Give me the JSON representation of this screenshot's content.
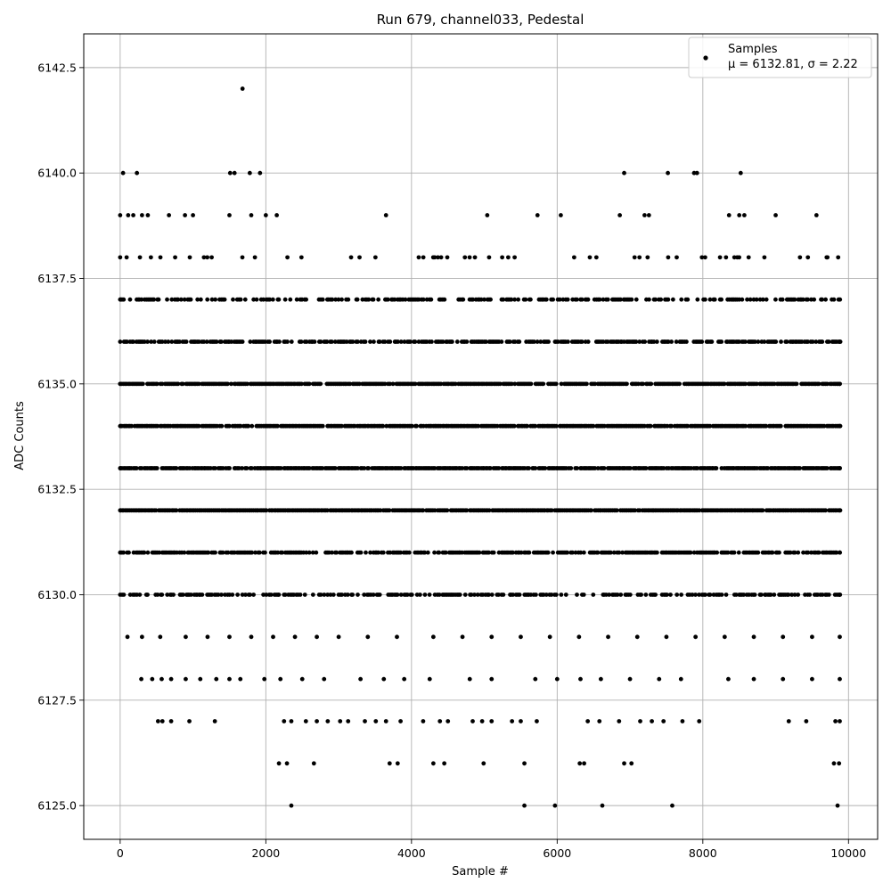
{
  "chart_data": {
    "type": "scatter",
    "title": "Run 679, channel033, Pedestal",
    "xlabel": "Sample #",
    "ylabel": "ADC Counts",
    "xlim": [
      -500,
      10400
    ],
    "ylim": [
      6124.2,
      6143.3
    ],
    "xticks": [
      0,
      2000,
      4000,
      6000,
      8000,
      10000
    ],
    "yticks": [
      6125.0,
      6127.5,
      6130.0,
      6132.5,
      6135.0,
      6137.5,
      6140.0,
      6142.5
    ],
    "grid": true,
    "legend": {
      "placement": "top-right",
      "entries": [
        {
          "label": "Samples",
          "sublabel": "μ = 6132.81, σ = 2.22",
          "color": "#000000",
          "marker": "circle"
        }
      ]
    },
    "n_samples": 9880,
    "mean": 6132.81,
    "sigma": 2.22,
    "series": [
      {
        "name": "Samples",
        "color": "#000000",
        "points": [
          [
            0,
            6139
          ],
          [
            40,
            6140
          ],
          [
            110,
            6139
          ],
          [
            230,
            6140
          ],
          [
            180,
            6139
          ],
          [
            300,
            6139
          ],
          [
            380,
            6139
          ],
          [
            670,
            6139
          ],
          [
            890,
            6139
          ],
          [
            1000,
            6139
          ],
          [
            1500,
            6139
          ],
          [
            1800,
            6139
          ],
          [
            2000,
            6139
          ],
          [
            2150,
            6139
          ],
          [
            3650,
            6139
          ],
          [
            5040,
            6139
          ],
          [
            5730,
            6139
          ],
          [
            6050,
            6139
          ],
          [
            6860,
            6139
          ],
          [
            7200,
            6139
          ],
          [
            7260,
            6139
          ],
          [
            8360,
            6139
          ],
          [
            8500,
            6139
          ],
          [
            8570,
            6139
          ],
          [
            9000,
            6139
          ],
          [
            9560,
            6139
          ],
          [
            1510,
            6140
          ],
          [
            1570,
            6140
          ],
          [
            1780,
            6140
          ],
          [
            1920,
            6140
          ],
          [
            6920,
            6140
          ],
          [
            7520,
            6140
          ],
          [
            7880,
            6140
          ],
          [
            7920,
            6140
          ],
          [
            8520,
            6140
          ],
          [
            1680,
            6142
          ],
          [
            2350,
            6125
          ],
          [
            5550,
            6125
          ],
          [
            5970,
            6125
          ],
          [
            6620,
            6125
          ],
          [
            7580,
            6125
          ],
          [
            9850,
            6125
          ],
          [
            2180,
            6126
          ],
          [
            2290,
            6126
          ],
          [
            2660,
            6126
          ],
          [
            3700,
            6126
          ],
          [
            3810,
            6126
          ],
          [
            4300,
            6126
          ],
          [
            4450,
            6126
          ],
          [
            4990,
            6126
          ],
          [
            5550,
            6126
          ],
          [
            6310,
            6126
          ],
          [
            6370,
            6126
          ],
          [
            6920,
            6126
          ],
          [
            7020,
            6126
          ],
          [
            9800,
            6126
          ],
          [
            9870,
            6126
          ],
          [
            520,
            6127
          ],
          [
            580,
            6127
          ],
          [
            700,
            6127
          ],
          [
            950,
            6127
          ],
          [
            1300,
            6127
          ],
          [
            2250,
            6127
          ],
          [
            2350,
            6127
          ],
          [
            2550,
            6127
          ],
          [
            2700,
            6127
          ],
          [
            2850,
            6127
          ],
          [
            3020,
            6127
          ],
          [
            3130,
            6127
          ],
          [
            3360,
            6127
          ],
          [
            3510,
            6127
          ],
          [
            3650,
            6127
          ],
          [
            3850,
            6127
          ],
          [
            4160,
            6127
          ],
          [
            4390,
            6127
          ],
          [
            4500,
            6127
          ],
          [
            4840,
            6127
          ],
          [
            4970,
            6127
          ],
          [
            5100,
            6127
          ],
          [
            5380,
            6127
          ],
          [
            5500,
            6127
          ],
          [
            5720,
            6127
          ],
          [
            6420,
            6127
          ],
          [
            6580,
            6127
          ],
          [
            6850,
            6127
          ],
          [
            7140,
            6127
          ],
          [
            7300,
            6127
          ],
          [
            7460,
            6127
          ],
          [
            7720,
            6127
          ],
          [
            7950,
            6127
          ],
          [
            9180,
            6127
          ],
          [
            9420,
            6127
          ],
          [
            9820,
            6127
          ],
          [
            9880,
            6127
          ],
          [
            290,
            6128
          ],
          [
            440,
            6128
          ],
          [
            570,
            6128
          ],
          [
            700,
            6128
          ],
          [
            900,
            6128
          ],
          [
            1100,
            6128
          ],
          [
            1320,
            6128
          ],
          [
            1500,
            6128
          ],
          [
            1650,
            6128
          ],
          [
            1980,
            6128
          ],
          [
            2200,
            6128
          ],
          [
            2500,
            6128
          ],
          [
            2800,
            6128
          ],
          [
            3300,
            6128
          ],
          [
            3620,
            6128
          ],
          [
            3900,
            6128
          ],
          [
            4250,
            6128
          ],
          [
            4800,
            6128
          ],
          [
            5100,
            6128
          ],
          [
            5700,
            6128
          ],
          [
            6000,
            6128
          ],
          [
            6320,
            6128
          ],
          [
            6600,
            6128
          ],
          [
            7000,
            6128
          ],
          [
            7400,
            6128
          ],
          [
            7700,
            6128
          ],
          [
            8350,
            6128
          ],
          [
            8700,
            6128
          ],
          [
            9100,
            6128
          ],
          [
            9500,
            6128
          ],
          [
            9880,
            6128
          ],
          [
            100,
            6129
          ],
          [
            300,
            6129
          ],
          [
            550,
            6129
          ],
          [
            900,
            6129
          ],
          [
            1200,
            6129
          ],
          [
            1500,
            6129
          ],
          [
            1800,
            6129
          ],
          [
            2100,
            6129
          ],
          [
            2400,
            6129
          ],
          [
            2700,
            6129
          ],
          [
            3000,
            6129
          ],
          [
            3400,
            6129
          ],
          [
            3800,
            6129
          ],
          [
            4300,
            6129
          ],
          [
            4700,
            6129
          ],
          [
            5100,
            6129
          ],
          [
            5500,
            6129
          ],
          [
            5900,
            6129
          ],
          [
            6300,
            6129
          ],
          [
            6700,
            6129
          ],
          [
            7100,
            6129
          ],
          [
            7500,
            6129
          ],
          [
            7900,
            6129
          ],
          [
            8300,
            6129
          ],
          [
            8700,
            6129
          ],
          [
            9100,
            6129
          ],
          [
            9500,
            6129
          ],
          [
            9880,
            6129
          ],
          [
            0,
            6130
          ],
          [
            9880,
            6130
          ],
          [
            0,
            6131
          ],
          [
            9880,
            6131
          ],
          [
            0,
            6132
          ],
          [
            9880,
            6132
          ],
          [
            0,
            6133
          ],
          [
            9880,
            6133
          ],
          [
            0,
            6134
          ],
          [
            9880,
            6134
          ],
          [
            0,
            6135
          ],
          [
            9880,
            6135
          ],
          [
            0,
            6136
          ],
          [
            9880,
            6136
          ],
          [
            0,
            6137
          ],
          [
            9800,
            6137
          ],
          [
            0,
            6138
          ],
          [
            9700,
            6138
          ]
        ]
      }
    ]
  }
}
